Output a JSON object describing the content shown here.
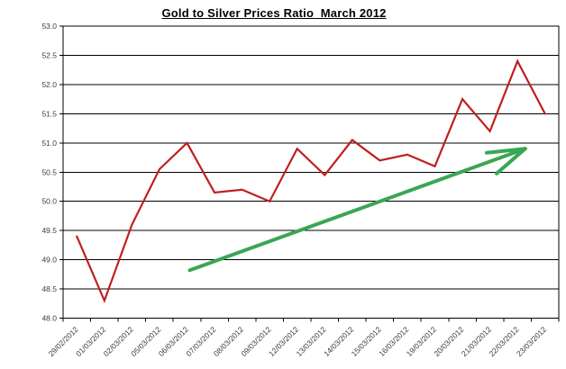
{
  "chart_data": {
    "type": "line",
    "title": "Gold to Silver Prices Ratio  March 2012",
    "categories": [
      "29/02/2012",
      "01/03/2012",
      "02/03/2012",
      "05/03/2012",
      "06/03/2012",
      "07/03/2012",
      "08/03/2012",
      "09/03/2012",
      "12/03/2012",
      "13/03/2012",
      "14/03/2012",
      "15/03/2012",
      "16/03/2012",
      "19/03/2012",
      "20/03/2012",
      "21/03/2012",
      "22/03/2012",
      "23/03/2012"
    ],
    "series": [
      {
        "name": "gold-to-silver-ratio",
        "color": "#bf1f1f",
        "values": [
          49.4,
          48.3,
          49.6,
          50.55,
          51.0,
          50.15,
          50.2,
          50.0,
          50.9,
          50.45,
          51.05,
          50.7,
          50.8,
          50.6,
          51.75,
          51.2,
          52.4,
          51.5
        ]
      }
    ],
    "xlabel": "",
    "ylabel": "",
    "ylim": [
      48.0,
      53.0
    ],
    "ytick_step": 0.5,
    "ytick_labels": [
      "48.0",
      "48.5",
      "49.0",
      "49.5",
      "50.0",
      "50.5",
      "51.0",
      "51.5",
      "52.0",
      "52.5",
      "53.0"
    ],
    "grid": true,
    "legend": "none",
    "annotations": [
      {
        "type": "arrow",
        "name": "upward-trend-arrow",
        "color": "#3aa655",
        "from": {
          "x_index": 4.1,
          "value": 48.82
        },
        "to": {
          "x_index": 16.28,
          "value": 50.9
        }
      }
    ]
  }
}
